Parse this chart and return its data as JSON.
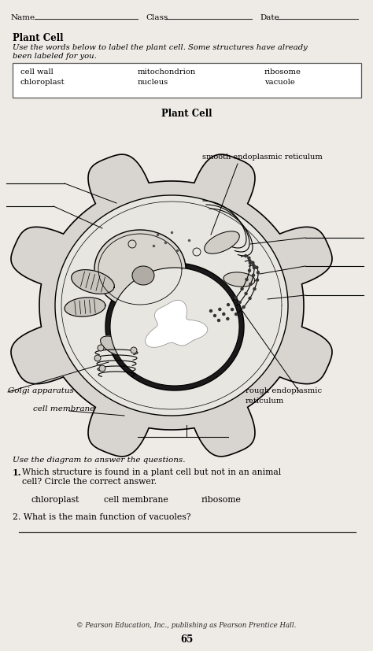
{
  "bg_color": "#eeebe6",
  "title_header": "Plant Cell",
  "subtitle_line1": "Use the words below to label the plant cell. Some structures have already",
  "subtitle_line2": "been labeled for you.",
  "word_box": {
    "col1": [
      "cell wall",
      "chloroplast"
    ],
    "col2": [
      "mitochondrion",
      "nucleus"
    ],
    "col3": [
      "ribosome",
      "vacuole"
    ]
  },
  "diagram_title": "Plant Cell",
  "questions_header": "Use the diagram to answer the questions.",
  "q1_num": "1.",
  "q1_text": "Which structure is found in a plant cell but not in an animal",
  "q1_text2": "cell? Circle the correct answer.",
  "q1_a1": "chloroplast",
  "q1_a2": "cell membrane",
  "q1_a3": "ribosome",
  "q2": "2. What is the main function of vacuoles?",
  "footer": "© Pearson Education, Inc., publishing as Pearson Prentice Hall.",
  "page_num": "65",
  "name_label": "Name",
  "class_label": "Class",
  "date_label": "Date",
  "label_ser": "smooth endoplasmic reticulum",
  "label_golgi": "Golgi apparatus",
  "label_cm": "cell membrane",
  "label_rer": "rough endoplasmic",
  "label_rer2": "reticulum"
}
